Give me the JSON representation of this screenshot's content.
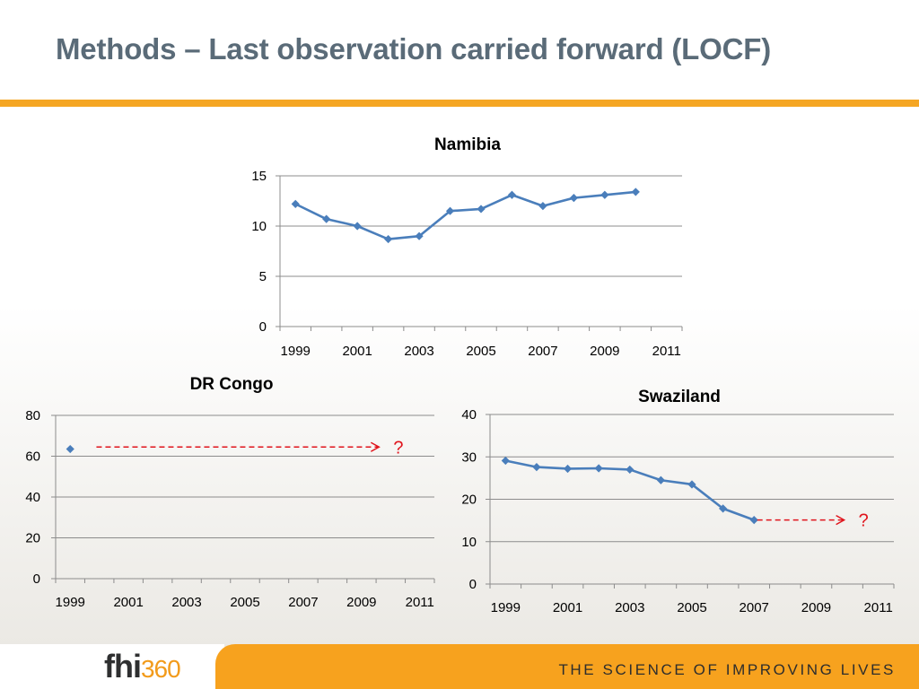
{
  "slide": {
    "title": "Methods – Last observation carried forward (LOCF)",
    "colors": {
      "title": "#5a6b78",
      "rule": "#f5a623",
      "footer": "#f7a21e"
    }
  },
  "chart_data": [
    {
      "type": "line",
      "title": "Namibia",
      "x": [
        1999,
        2000,
        2001,
        2002,
        2003,
        2004,
        2005,
        2006,
        2007,
        2008,
        2009,
        2010
      ],
      "values": [
        12.2,
        10.7,
        10.0,
        8.7,
        9.0,
        11.5,
        11.7,
        13.1,
        12.0,
        12.8,
        13.1,
        13.4
      ],
      "xlim": [
        1998.5,
        2011.5
      ],
      "ylim": [
        0,
        15
      ],
      "x_ticks": [
        1999,
        2001,
        2003,
        2005,
        2007,
        2009,
        2011
      ],
      "y_ticks": [
        0,
        5,
        10,
        15
      ],
      "series_color": "#4a7ebb",
      "grid": true,
      "legend": "none"
    },
    {
      "type": "line",
      "title": "DR Congo",
      "x": [
        1999
      ],
      "values": [
        63.5
      ],
      "xlim": [
        1998.5,
        2011.5
      ],
      "ylim": [
        0,
        80
      ],
      "x_ticks": [
        1999,
        2001,
        2003,
        2005,
        2007,
        2009,
        2011
      ],
      "y_ticks": [
        0,
        20,
        40,
        60,
        80
      ],
      "series_color": "#4a7ebb",
      "grid": true,
      "legend": "none",
      "annotation": {
        "text": "?",
        "from_x": 1999.9,
        "to_x": 2009.6,
        "y": 64.5,
        "color": "#e0141c"
      }
    },
    {
      "type": "line",
      "title": "Swaziland",
      "x": [
        1999,
        2000,
        2001,
        2002,
        2003,
        2004,
        2005,
        2006,
        2007
      ],
      "values": [
        29.1,
        27.6,
        27.2,
        27.3,
        27.0,
        24.5,
        23.5,
        17.8,
        15.1
      ],
      "xlim": [
        1998.5,
        2011.5
      ],
      "ylim": [
        0,
        40
      ],
      "x_ticks": [
        1999,
        2001,
        2003,
        2005,
        2007,
        2009,
        2011
      ],
      "y_ticks": [
        0,
        10,
        20,
        30,
        40
      ],
      "series_color": "#4a7ebb",
      "grid": true,
      "legend": "none",
      "annotation": {
        "text": "?",
        "from_x": 2007.1,
        "to_x": 2009.9,
        "y": 15.1,
        "color": "#e0141c"
      }
    }
  ],
  "footer": {
    "logo_main": "fhi",
    "logo_number": "360",
    "tagline": "THE SCIENCE OF IMPROVING LIVES"
  }
}
